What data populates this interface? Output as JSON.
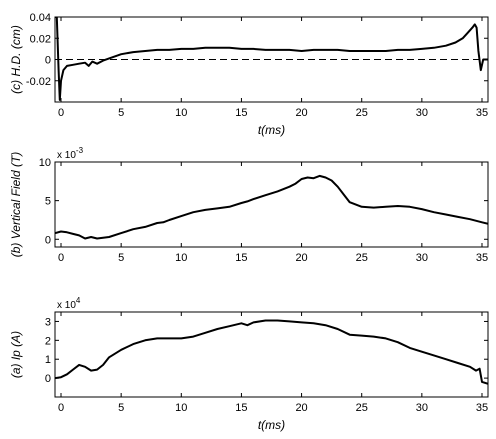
{
  "chart_data": [
    {
      "type": "line",
      "ylabel": "(c) H.D. (cm)",
      "xlabel": "t(ms)",
      "xlim": [
        -0.5,
        35.5
      ],
      "ylim": [
        -0.04,
        0.04
      ],
      "xticks": [
        0,
        5,
        10,
        15,
        20,
        25,
        30,
        35
      ],
      "xtick_labels": [
        "0",
        "5",
        "10",
        "15",
        "20",
        "25",
        "30",
        "35"
      ],
      "yticks": [
        -0.02,
        0,
        0.02,
        0.04
      ],
      "ytick_labels": [
        "-0.02",
        "0",
        "0.02",
        "0.04"
      ],
      "multiplier": "",
      "reference_line": {
        "y": 0,
        "style": "dashed"
      },
      "series": [
        {
          "x": [
            -0.5,
            -0.35,
            -0.2,
            -0.1,
            0,
            0.2,
            0.5,
            1,
            1.5,
            2,
            2.3,
            2.6,
            3,
            3.5,
            4,
            5,
            6,
            7,
            8,
            9,
            10,
            11,
            12,
            13,
            14,
            15,
            16,
            17,
            18,
            19,
            20,
            21,
            22,
            23,
            24,
            25,
            26,
            27,
            28,
            29,
            30,
            31,
            32,
            32.8,
            33.4,
            33.8,
            34.2,
            34.4,
            34.55,
            34.7,
            34.9,
            35.1,
            35.3,
            35.5
          ],
          "y": [
            0.04,
            0.04,
            -0.01,
            -0.038,
            -0.02,
            -0.01,
            -0.006,
            -0.005,
            -0.004,
            -0.003,
            -0.006,
            -0.002,
            -0.004,
            -0.001,
            0.001,
            0.005,
            0.007,
            0.008,
            0.009,
            0.009,
            0.01,
            0.01,
            0.011,
            0.011,
            0.011,
            0.01,
            0.01,
            0.009,
            0.009,
            0.009,
            0.008,
            0.009,
            0.009,
            0.009,
            0.008,
            0.008,
            0.008,
            0.008,
            0.009,
            0.009,
            0.01,
            0.011,
            0.013,
            0.016,
            0.02,
            0.025,
            0.03,
            0.033,
            0.03,
            0.008,
            -0.01,
            0.0,
            0.0,
            0.0
          ]
        }
      ]
    },
    {
      "type": "line",
      "ylabel": "(b) Vertical Field (T)",
      "xlabel": "",
      "xlim": [
        -0.5,
        35.5
      ],
      "ylim": [
        -0.001,
        0.01
      ],
      "xticks": [
        0,
        5,
        10,
        15,
        20,
        25,
        30,
        35
      ],
      "xtick_labels": [
        "0",
        "5",
        "10",
        "15",
        "20",
        "25",
        "30",
        "35"
      ],
      "yticks": [
        0,
        0.005,
        0.01
      ],
      "ytick_labels": [
        "0",
        "5",
        "10"
      ],
      "multiplier": "x 10",
      "multiplier_exp": "-3",
      "series": [
        {
          "x": [
            -0.5,
            0,
            0.5,
            1,
            1.5,
            2,
            2.5,
            3,
            3.5,
            4,
            5,
            6,
            7,
            8,
            8.5,
            9,
            10,
            11,
            12,
            13,
            14,
            15,
            15.5,
            16,
            17,
            18,
            19,
            19.5,
            20,
            20.5,
            21,
            21.5,
            22,
            22.5,
            23,
            23.5,
            24,
            25,
            26,
            27,
            28,
            29,
            30,
            31,
            32,
            33,
            34,
            35,
            35.5
          ],
          "y": [
            0.0008,
            0.001,
            0.0009,
            0.0007,
            0.0005,
            0.0001,
            0.0003,
            0.0001,
            0.0002,
            0.0003,
            0.0008,
            0.0013,
            0.0016,
            0.0021,
            0.0022,
            0.0025,
            0.003,
            0.0035,
            0.0038,
            0.004,
            0.0042,
            0.0047,
            0.0049,
            0.0052,
            0.0057,
            0.0062,
            0.0068,
            0.0072,
            0.0078,
            0.008,
            0.0079,
            0.0082,
            0.008,
            0.0076,
            0.0068,
            0.0058,
            0.0048,
            0.0042,
            0.0041,
            0.0042,
            0.0043,
            0.0042,
            0.0039,
            0.0035,
            0.0032,
            0.0029,
            0.0026,
            0.0022,
            0.002
          ]
        }
      ]
    },
    {
      "type": "line",
      "ylabel": "(a) Ip (A)",
      "xlabel": "t(ms)",
      "xlim": [
        -0.5,
        35.5
      ],
      "ylim": [
        -10000,
        35000
      ],
      "xticks": [
        0,
        5,
        10,
        15,
        20,
        25,
        30,
        35
      ],
      "xtick_labels": [
        "0",
        "5",
        "10",
        "15",
        "20",
        "25",
        "30",
        "35"
      ],
      "yticks": [
        0,
        10000,
        20000,
        30000
      ],
      "ytick_labels": [
        "0",
        "1",
        "2",
        "3"
      ],
      "multiplier": "x 10",
      "multiplier_exp": "4",
      "series": [
        {
          "x": [
            -0.5,
            0,
            0.5,
            1,
            1.5,
            2,
            2.5,
            3,
            3.5,
            4,
            5,
            6,
            7,
            8,
            9,
            10,
            11,
            12,
            13,
            14,
            15,
            15.5,
            16,
            17,
            18,
            19,
            20,
            21,
            22,
            23,
            24,
            25,
            26,
            27,
            28,
            29,
            30,
            31,
            32,
            33,
            34,
            34.5,
            34.8,
            35,
            35.5
          ],
          "y": [
            0,
            500,
            2000,
            4500,
            7000,
            6000,
            4000,
            4500,
            7000,
            11000,
            15000,
            18000,
            20000,
            21000,
            21000,
            21000,
            22000,
            24000,
            26000,
            27500,
            29000,
            28000,
            29500,
            30500,
            30500,
            30000,
            29500,
            29000,
            28000,
            26000,
            23000,
            22500,
            22000,
            21000,
            19000,
            16000,
            14000,
            12000,
            10000,
            8000,
            6000,
            4000,
            5000,
            -2000,
            -3000
          ]
        }
      ]
    }
  ]
}
